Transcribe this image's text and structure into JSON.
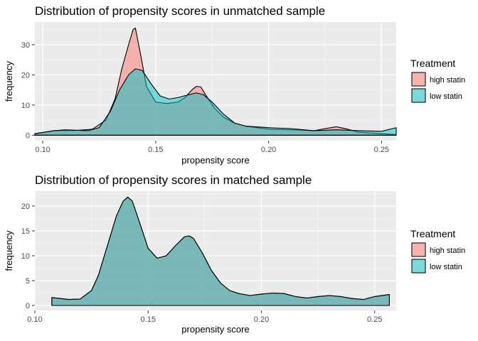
{
  "colors": {
    "high_statin": "#F8766D",
    "low_statin": "#00BFC4",
    "panel_bg": "#EBEBEB",
    "grid_major": "#FFFFFF"
  },
  "chart_data": [
    {
      "type": "area",
      "title": "Distribution of propensity scores in unmatched sample",
      "xlabel": "propensity score",
      "ylabel": "frequency",
      "xlim": [
        0.0965,
        0.2565
      ],
      "ylim": [
        -1.8,
        37.5
      ],
      "x_ticks": [
        0.1,
        0.15,
        0.2,
        0.25
      ],
      "x_tick_labels": [
        "0.10",
        "0.15",
        "0.20",
        "0.25"
      ],
      "y_ticks": [
        0,
        10,
        20,
        30
      ],
      "y_tick_labels": [
        "0",
        "10",
        "20",
        "30"
      ],
      "grid": true,
      "legend": {
        "title": "Treatment",
        "position": "right",
        "entries": [
          "high statin",
          "low statin"
        ]
      },
      "series": [
        {
          "name": "high statin",
          "color_key": "high_statin",
          "x": [
            0.0965,
            0.105,
            0.115,
            0.122,
            0.128,
            0.132,
            0.135,
            0.138,
            0.14,
            0.141,
            0.143,
            0.146,
            0.15,
            0.155,
            0.16,
            0.163,
            0.166,
            0.168,
            0.17,
            0.172,
            0.176,
            0.18,
            0.185,
            0.19,
            0.2,
            0.21,
            0.22,
            0.225,
            0.23,
            0.235,
            0.24,
            0.25,
            0.2565
          ],
          "y": [
            0.5,
            1.5,
            1.6,
            2.0,
            5.0,
            12.0,
            22.0,
            30.0,
            35.0,
            35.5,
            28.0,
            16.0,
            11.0,
            10.5,
            11.0,
            12.5,
            15.0,
            16.2,
            16.0,
            13.5,
            9.0,
            6.0,
            4.0,
            3.0,
            2.0,
            1.8,
            1.5,
            2.2,
            2.8,
            2.0,
            1.0,
            0.5,
            0.2
          ]
        },
        {
          "name": "low statin",
          "color_key": "low_statin",
          "x": [
            0.0965,
            0.105,
            0.11,
            0.12,
            0.125,
            0.13,
            0.134,
            0.138,
            0.141,
            0.144,
            0.148,
            0.152,
            0.156,
            0.16,
            0.165,
            0.168,
            0.171,
            0.175,
            0.18,
            0.185,
            0.19,
            0.2,
            0.21,
            0.22,
            0.23,
            0.24,
            0.25,
            0.2565
          ],
          "y": [
            0.5,
            1.5,
            1.8,
            1.5,
            2.5,
            8.0,
            15.0,
            20.0,
            22.0,
            21.5,
            17.0,
            13.0,
            12.0,
            12.5,
            13.5,
            14.0,
            13.5,
            11.0,
            7.0,
            4.0,
            3.0,
            2.5,
            2.2,
            1.5,
            1.8,
            1.5,
            1.3,
            2.5
          ]
        }
      ]
    },
    {
      "type": "area",
      "title": "Distribution of propensity scores in matched sample",
      "xlabel": "propensity score",
      "ylabel": "frequency",
      "xlim": [
        0.1,
        0.2595
      ],
      "ylim": [
        -1.0,
        23.0
      ],
      "x_ticks": [
        0.1,
        0.15,
        0.2,
        0.25
      ],
      "x_tick_labels": [
        "0.10",
        "0.15",
        "0.20",
        "0.25"
      ],
      "y_ticks": [
        0,
        5,
        10,
        15,
        20
      ],
      "y_tick_labels": [
        "0",
        "5",
        "10",
        "15",
        "20"
      ],
      "grid": true,
      "legend": {
        "title": "Treatment",
        "position": "right",
        "entries": [
          "high statin",
          "low statin"
        ]
      },
      "series": [
        {
          "name": "high statin",
          "color_key": "high_statin",
          "x": [
            0.1075,
            0.115,
            0.12,
            0.125,
            0.128,
            0.132,
            0.136,
            0.139,
            0.141,
            0.143,
            0.146,
            0.15,
            0.154,
            0.158,
            0.162,
            0.166,
            0.168,
            0.17,
            0.174,
            0.178,
            0.182,
            0.186,
            0.19,
            0.195,
            0.2,
            0.205,
            0.21,
            0.215,
            0.22,
            0.225,
            0.23,
            0.235,
            0.24,
            0.245,
            0.25,
            0.2565
          ],
          "y": [
            1.6,
            1.2,
            1.3,
            3.0,
            6.0,
            12.0,
            18.0,
            21.0,
            21.8,
            21.0,
            17.0,
            11.5,
            9.5,
            10.0,
            12.0,
            13.8,
            14.0,
            13.5,
            10.5,
            7.0,
            4.5,
            3.0,
            2.4,
            2.0,
            2.3,
            2.5,
            2.4,
            1.8,
            1.5,
            1.8,
            2.0,
            1.8,
            1.4,
            1.2,
            1.8,
            2.2
          ]
        },
        {
          "name": "low statin",
          "color_key": "low_statin",
          "x": [
            0.1075,
            0.115,
            0.12,
            0.125,
            0.128,
            0.132,
            0.136,
            0.139,
            0.141,
            0.143,
            0.146,
            0.15,
            0.154,
            0.158,
            0.162,
            0.166,
            0.168,
            0.17,
            0.174,
            0.178,
            0.182,
            0.186,
            0.19,
            0.195,
            0.2,
            0.205,
            0.21,
            0.215,
            0.22,
            0.225,
            0.23,
            0.235,
            0.24,
            0.245,
            0.25,
            0.2565
          ],
          "y": [
            1.6,
            1.2,
            1.3,
            3.0,
            6.0,
            12.0,
            18.0,
            21.0,
            21.8,
            21.0,
            17.0,
            11.5,
            9.5,
            10.0,
            12.0,
            13.8,
            14.0,
            13.5,
            10.5,
            7.0,
            4.5,
            3.0,
            2.4,
            2.0,
            2.3,
            2.5,
            2.4,
            1.8,
            1.5,
            1.8,
            2.0,
            1.8,
            1.4,
            1.2,
            1.8,
            2.2
          ]
        }
      ]
    }
  ]
}
